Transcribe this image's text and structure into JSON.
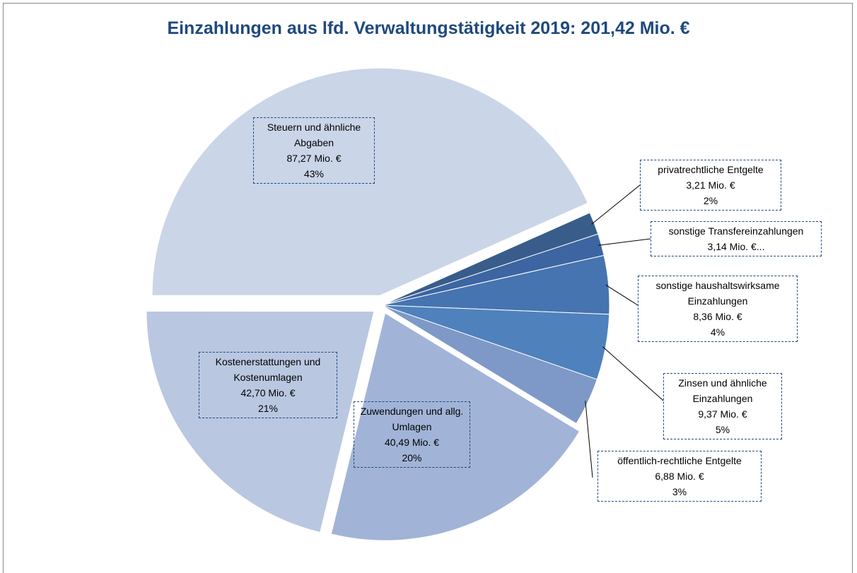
{
  "chart_data": {
    "type": "pie",
    "title": "Einzahlungen aus lfd. Verwaltungstätigkeit 2019: 201,42 Mio. €",
    "categories": [
      "privatrechtliche Entgelte",
      "sonstige Transfereinzahlungen",
      "sonstige haushaltswirksame Einzahlungen",
      "Zinsen und ähnliche Einzahlungen",
      "öffentlich-rechtliche Entgelte",
      "Zuwendungen und allg. Umlagen",
      "Kostenerstattungen und Kostenumlagen",
      "Steuern und ähnliche Abgaben"
    ],
    "values": [
      3.21,
      3.14,
      8.36,
      9.37,
      6.88,
      40.49,
      42.7,
      87.27
    ],
    "value_labels": [
      "3,21 Mio. €",
      "3,14 Mio. €...",
      "8,36 Mio. €",
      "9,37 Mio. €",
      "6,88 Mio. €",
      "40,49 Mio. €",
      "42,70 Mio. €",
      "87,27 Mio. €"
    ],
    "percent_labels": [
      "2%",
      null,
      "4%",
      "5%",
      "3%",
      "20%",
      "21%",
      "43%"
    ],
    "colors": [
      "#385d8a",
      "#3c65a2",
      "#4674b0",
      "#4f81bd",
      "#7e99c7",
      "#a1b4d7",
      "#b9c7e1",
      "#cad5e8"
    ]
  }
}
